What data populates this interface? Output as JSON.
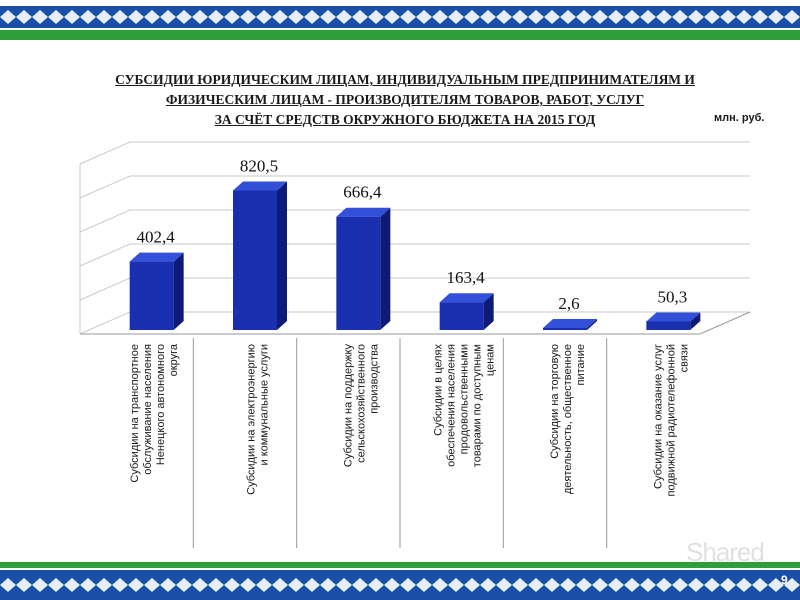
{
  "title": {
    "line1": "СУБСИДИИ ЮРИДИЧЕСКИМ ЛИЦАМ, ИНДИВИДУАЛЬНЫМ ПРЕДПРИНИМАТЕЛЯМ И",
    "line2": "ФИЗИЧЕСКИМ ЛИЦАМ - ПРОИЗВОДИТЕЛЯМ ТОВАРОВ, РАБОТ, УСЛУГ",
    "line3": "ЗА СЧЁТ СРЕДСТВ ОКРУЖНОГО БЮДЖЕТА НА 2015 ГОД"
  },
  "unit": "млн. руб.",
  "page_number": "9",
  "watermark": "Shared",
  "colors": {
    "bar_front": "#1a2fb0",
    "bar_top": "#3350d8",
    "bar_side": "#0d1a78",
    "band_blue": "#1a4fa8",
    "band_green": "#2e9e3a"
  },
  "chart_data": {
    "type": "bar",
    "categories": [
      "Субсидии на транспортное обслуживание населения Ненецкого автономного округа",
      "Субсидии на электроэнергию и коммунальные услуги",
      "Субсидии на поддержку сельскохозяйственного производства",
      "Субсидии в целях обеспечения населения продовольственными товарами по доступным ценам",
      "Субсидии на торговую деятельность, общественное питание",
      "Субсидии на оказание услуг подвижной радиотелефонной связи"
    ],
    "category_lines": [
      [
        "Субсидии на транспортное",
        "обслуживание населения",
        "Ненецкого автономного",
        "округа"
      ],
      [
        "Субсидии на электроэнергию",
        "и коммунальные услуги"
      ],
      [
        "Субсидии на поддержку",
        "сельскохозяйственного",
        "производства"
      ],
      [
        "Субсидии в целях",
        "обеспечения населения",
        "продовольственными",
        "товарами по доступным",
        "ценам"
      ],
      [
        "Субсидии на торговую",
        "деятельность, общественное",
        "питание"
      ],
      [
        "Субсидии на оказание услуг",
        "подвижной радиотелефонной",
        "связи"
      ]
    ],
    "values": [
      402.4,
      820.5,
      666.4,
      163.4,
      2.6,
      50.3
    ],
    "value_labels": [
      "402,4",
      "820,5",
      "666,4",
      "163,4",
      "2,6",
      "50,3"
    ],
    "ylim": [
      0,
      1000
    ],
    "grid": true,
    "three_d": true
  }
}
